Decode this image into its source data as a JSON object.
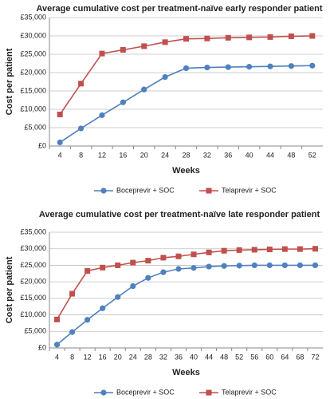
{
  "chart_data": [
    {
      "type": "line",
      "title": "Average cumulative cost per treatment-naïve early responder patient",
      "x_label": "Weeks",
      "y_label": "Cost per patient",
      "categories": [
        "4",
        "8",
        "12",
        "16",
        "20",
        "24",
        "28",
        "32",
        "36",
        "40",
        "44",
        "48",
        "52"
      ],
      "series": [
        {
          "name": "Boceprevir + SOC",
          "color": "#4f81bd",
          "marker": "circle",
          "values": [
            1000,
            4800,
            8400,
            11900,
            15400,
            18800,
            21200,
            21400,
            21500,
            21600,
            21700,
            21800,
            21900
          ]
        },
        {
          "name": "Telaprevir + SOC",
          "color": "#c0504d",
          "marker": "square",
          "values": [
            8600,
            17000,
            25200,
            26200,
            27200,
            28300,
            29200,
            29300,
            29500,
            29600,
            29700,
            29900,
            30000
          ]
        }
      ],
      "ylim": [
        0,
        35000
      ],
      "yticks": [
        {
          "value": 0,
          "label": "£0"
        },
        {
          "value": 5000,
          "label": "£5,000"
        },
        {
          "value": 10000,
          "label": "£10,000"
        },
        {
          "value": 15000,
          "label": "£15,000"
        },
        {
          "value": 20000,
          "label": "£20,000"
        },
        {
          "value": 25000,
          "label": "£25,000"
        },
        {
          "value": 30000,
          "label": "£30,000"
        },
        {
          "value": 35000,
          "label": "£35,000"
        }
      ],
      "grid": true,
      "legend": "bottom"
    },
    {
      "type": "line",
      "title": "Average cumulative cost per treatment-naïve late responder patient",
      "x_label": "Weeks",
      "y_label": "Cost per patient",
      "categories": [
        "4",
        "8",
        "12",
        "16",
        "20",
        "24",
        "28",
        "32",
        "36",
        "40",
        "44",
        "48",
        "52",
        "56",
        "60",
        "64",
        "68",
        "72"
      ],
      "series": [
        {
          "name": "Boceprevir + SOC",
          "color": "#4f81bd",
          "marker": "circle",
          "values": [
            1000,
            4800,
            8500,
            12000,
            15400,
            18700,
            21200,
            22900,
            23900,
            24200,
            24600,
            24800,
            24900,
            25000,
            25000,
            25000,
            25000,
            25000
          ]
        },
        {
          "name": "Telaprevir + SOC",
          "color": "#c0504d",
          "marker": "square",
          "values": [
            8600,
            16400,
            23300,
            24300,
            25000,
            25800,
            26400,
            27300,
            27700,
            28300,
            28900,
            29400,
            29600,
            29700,
            29800,
            29900,
            29900,
            30000
          ]
        }
      ],
      "ylim": [
        0,
        35000
      ],
      "yticks": [
        {
          "value": 0,
          "label": "£0"
        },
        {
          "value": 5000,
          "label": "£5,000"
        },
        {
          "value": 10000,
          "label": "£10,000"
        },
        {
          "value": 15000,
          "label": "£15,000"
        },
        {
          "value": 20000,
          "label": "£20,000"
        },
        {
          "value": 25000,
          "label": "£25,000"
        },
        {
          "value": 30000,
          "label": "£30,000"
        },
        {
          "value": 35000,
          "label": "£35,000"
        }
      ],
      "grid": true,
      "legend": "bottom"
    }
  ]
}
